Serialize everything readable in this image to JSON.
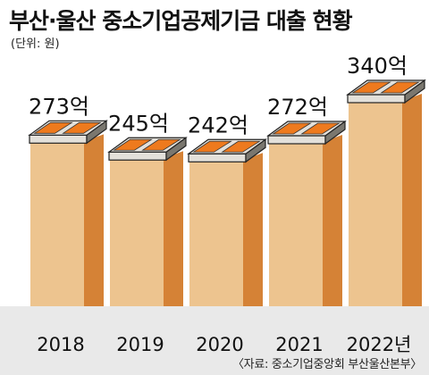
{
  "title": "부산·울산 중소기업공제기금 대출 현황",
  "unit_label": "(단위: 원)",
  "source": "〈자료: 중소기업중앙회 부산울산본부〉",
  "colors": {
    "bar_front": "#edc48f",
    "bar_side": "#d58236",
    "box_top": "#e3e0da",
    "box_dark": "#7a776f",
    "box_orange": "#ee7a1e",
    "floor": "#e9e9e9"
  },
  "chart_data": {
    "type": "bar",
    "categories": [
      "2018",
      "2019",
      "2020",
      "2021",
      "2022년"
    ],
    "values": [
      273,
      245,
      242,
      272,
      340
    ],
    "data_labels": [
      "273억",
      "245억",
      "242억",
      "272억",
      "340억"
    ],
    "title": "부산·울산 중소기업공제기금 대출 현황",
    "xlabel": "",
    "ylabel": "",
    "ylim": [
      0,
      340
    ],
    "grid": false,
    "legend": "none"
  }
}
